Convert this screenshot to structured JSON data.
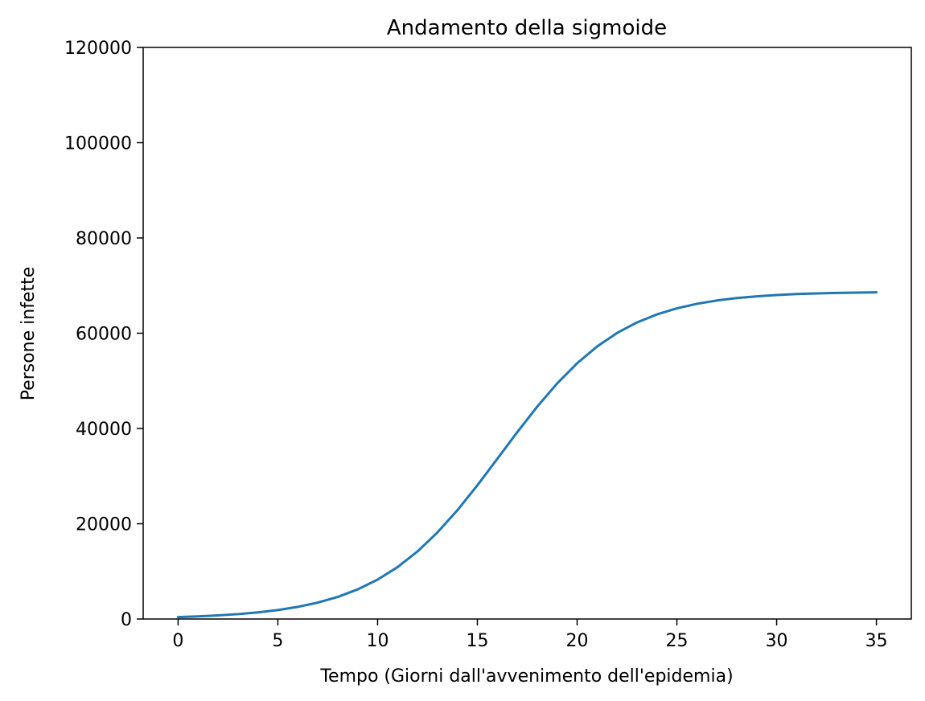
{
  "chart_data": {
    "type": "line",
    "title": "Andamento della sigmoide",
    "xlabel": "Tempo (Giorni dall'avvenimento dell'epidemia)",
    "ylabel": "Persone infette",
    "xlim": [
      -1.75,
      36.75
    ],
    "ylim": [
      0,
      120000
    ],
    "xticks": [
      0,
      5,
      10,
      15,
      20,
      25,
      30,
      35
    ],
    "xtick_labels": [
      "0",
      "5",
      "10",
      "15",
      "20",
      "25",
      "30",
      "35"
    ],
    "yticks": [
      0,
      20000,
      40000,
      60000,
      80000,
      100000,
      120000
    ],
    "ytick_labels": [
      "0",
      "20000",
      "40000",
      "60000",
      "80000",
      "100000",
      "120000"
    ],
    "grid": false,
    "series": [
      {
        "color": "#1f77b4",
        "x": [
          0,
          1,
          2,
          3,
          4,
          5,
          6,
          7,
          8,
          9,
          10,
          11,
          12,
          13,
          14,
          15,
          16,
          17,
          18,
          19,
          20,
          21,
          22,
          23,
          24,
          25,
          26,
          27,
          28,
          29,
          30,
          31,
          32,
          33,
          34,
          35
        ],
        "y": [
          409,
          555,
          754,
          1023,
          1388,
          1882,
          2547,
          3441,
          4634,
          6211,
          8266,
          10897,
          14186,
          18177,
          22844,
          28067,
          33625,
          39230,
          44591,
          49464,
          53690,
          57212,
          60046,
          62260,
          63950,
          65223,
          66170,
          66869,
          67380,
          67752,
          68022,
          68217,
          68358,
          68460,
          68533,
          68586
        ]
      }
    ]
  }
}
